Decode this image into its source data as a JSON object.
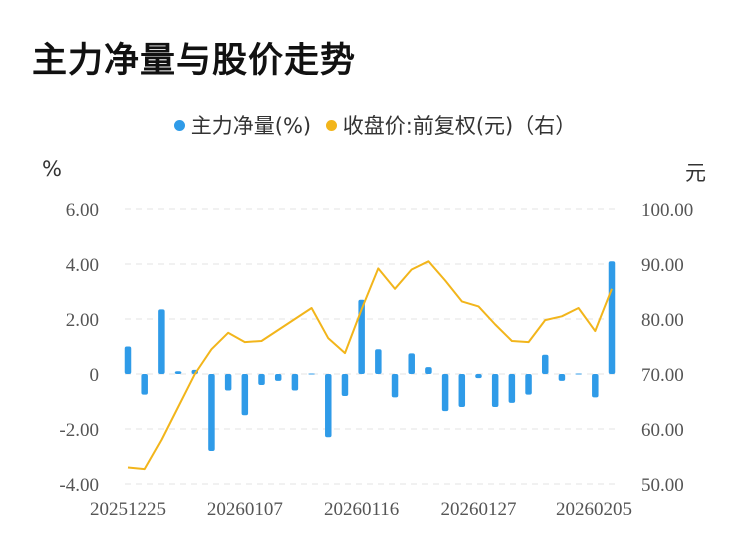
{
  "title": "主力净量与股价走势",
  "legend": [
    {
      "label": "主力净量(%)",
      "color": "#2f9be8"
    },
    {
      "label": "收盘价:前复权(元)（右）",
      "color": "#f2b51b"
    }
  ],
  "left_unit": "%",
  "right_unit": "元",
  "chart_data": {
    "type": "bar+line",
    "x_ticks": [
      "20251225",
      "20260107",
      "20260116",
      "20260127",
      "20260205"
    ],
    "y_left": {
      "label": "%",
      "range": [
        -4,
        6
      ],
      "ticks": [
        "6.00",
        "4.00",
        "2.00",
        "0",
        "-2.00",
        "-4.00"
      ]
    },
    "y_right": {
      "label": "元",
      "range": [
        50,
        100
      ],
      "ticks": [
        "100.00",
        "90.00",
        "80.00",
        "70.00",
        "60.00",
        "50.00"
      ]
    },
    "series": [
      {
        "name": "主力净量(%)",
        "type": "bar",
        "color": "#2f9be8",
        "values": [
          1.0,
          -0.75,
          2.35,
          0.1,
          0.15,
          -2.8,
          -0.6,
          -1.5,
          -0.4,
          -0.25,
          -0.6,
          0.02,
          -2.3,
          -0.8,
          2.7,
          0.9,
          -0.85,
          0.75,
          0.25,
          -1.35,
          -1.2,
          -0.15,
          -1.2,
          -1.05,
          -0.75,
          0.7,
          -0.25,
          0.02,
          -0.85,
          4.1
        ]
      },
      {
        "name": "收盘价:前复权(元)（右）",
        "type": "line",
        "color": "#f2b51b",
        "values": [
          53.0,
          52.7,
          58.0,
          64.0,
          70.0,
          74.5,
          77.5,
          75.8,
          76.0,
          78.0,
          80.0,
          82.0,
          76.5,
          73.8,
          81.8,
          89.2,
          85.5,
          89.0,
          90.5,
          87.0,
          83.2,
          82.3,
          79.0,
          76.0,
          75.8,
          79.8,
          80.5,
          82.0,
          77.8,
          85.5
        ]
      }
    ]
  }
}
